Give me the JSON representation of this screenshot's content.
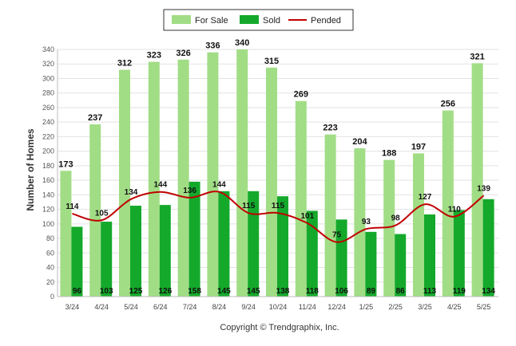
{
  "chart_data": {
    "type": "bar",
    "categories": [
      "3/24",
      "4/24",
      "5/24",
      "6/24",
      "7/24",
      "8/24",
      "9/24",
      "10/24",
      "11/24",
      "12/24",
      "1/25",
      "2/25",
      "3/25",
      "4/25",
      "5/25"
    ],
    "series": [
      {
        "name": "For Sale",
        "type": "bar",
        "color": "#a1dd85",
        "values": [
          173,
          237,
          312,
          323,
          326,
          336,
          340,
          315,
          269,
          223,
          204,
          188,
          197,
          256,
          321
        ]
      },
      {
        "name": "Sold",
        "type": "bar",
        "color": "#14a92b",
        "values": [
          96,
          103,
          125,
          126,
          158,
          145,
          145,
          138,
          118,
          106,
          89,
          86,
          113,
          119,
          134
        ]
      },
      {
        "name": "Pended",
        "type": "line",
        "color": "#c00000",
        "values": [
          114,
          105,
          134,
          144,
          136,
          144,
          115,
          115,
          101,
          75,
          93,
          98,
          127,
          110,
          139
        ]
      }
    ],
    "ylabel": "Number of Homes",
    "ylim": [
      0,
      340
    ],
    "yticks": [
      0,
      20,
      40,
      60,
      80,
      100,
      120,
      140,
      160,
      180,
      200,
      220,
      240,
      260,
      280,
      300,
      320,
      340
    ],
    "grid": true,
    "legend_position": "top-center",
    "footer": "Copyright © Trendgraphix, Inc."
  }
}
